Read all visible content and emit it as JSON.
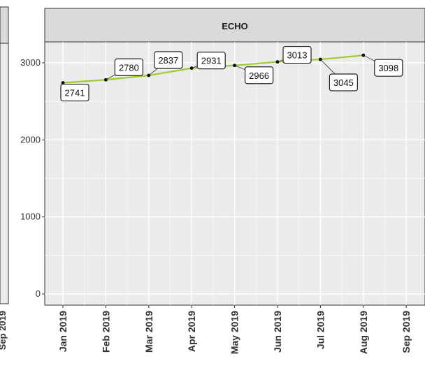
{
  "chart_data": {
    "type": "line",
    "facet_title": "ECHO",
    "x": [
      "Jan 2019",
      "Feb 2019",
      "Mar 2019",
      "Apr 2019",
      "May 2019",
      "Jun 2019",
      "Jul 2019",
      "Aug 2019"
    ],
    "values": [
      2741,
      2780,
      2837,
      2931,
      2966,
      3013,
      3045,
      3098
    ],
    "data_labels": [
      "2741",
      "2780",
      "2837",
      "2931",
      "2966",
      "3013",
      "3045",
      "3098"
    ],
    "x_ticks": [
      "Jan 2019",
      "Feb 2019",
      "Mar 2019",
      "Apr 2019",
      "May 2019",
      "Jun 2019",
      "Jul 2019",
      "Aug 2019",
      "Sep 2019"
    ],
    "y_ticks": [
      "0",
      "1000",
      "2000",
      "3000"
    ],
    "left_cut_tick": "Sep 2019",
    "ylim": [
      0,
      3600
    ],
    "grid": true,
    "line_color": "#9acd32",
    "point_color": "#000000",
    "panel_background": "#ebebeb",
    "strip_background": "#d9d9d9"
  }
}
